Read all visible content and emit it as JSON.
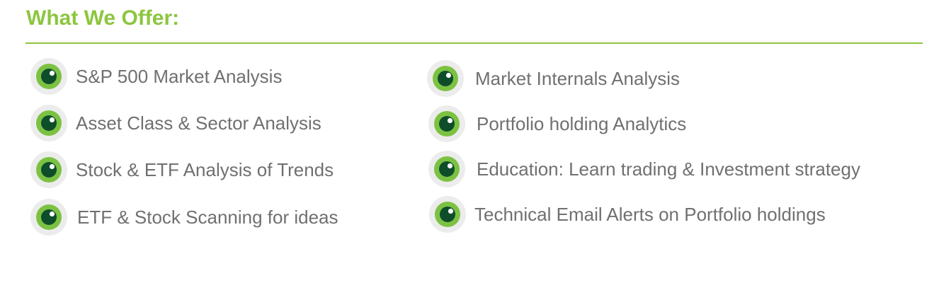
{
  "header": {
    "title": "What We Offer:"
  },
  "colors": {
    "accent": "#8cc63f",
    "icon_ring_outer": "#ececec",
    "icon_ring_green": "#7cc242",
    "icon_pupil": "#0e4d2a",
    "text": "#707070"
  },
  "offers": {
    "left": [
      {
        "label": "S&P 500 Market Analysis",
        "icon": "eye-bullet-icon"
      },
      {
        "label": "Asset Class & Sector Analysis",
        "icon": "eye-bullet-icon"
      },
      {
        "label": "Stock & ETF  Analysis of Trends",
        "icon": "eye-bullet-icon"
      },
      {
        "label": "ETF & Stock Scanning for ideas",
        "icon": "eye-bullet-icon"
      }
    ],
    "right": [
      {
        "label": "Market Internals Analysis",
        "icon": "eye-bullet-icon"
      },
      {
        "label": "Portfolio holding Analytics",
        "icon": "eye-bullet-icon"
      },
      {
        "label": "Education: Learn trading & Investment strategy",
        "icon": "eye-bullet-icon"
      },
      {
        "label": "Technical Email Alerts on Portfolio holdings",
        "icon": "eye-bullet-icon"
      }
    ]
  }
}
